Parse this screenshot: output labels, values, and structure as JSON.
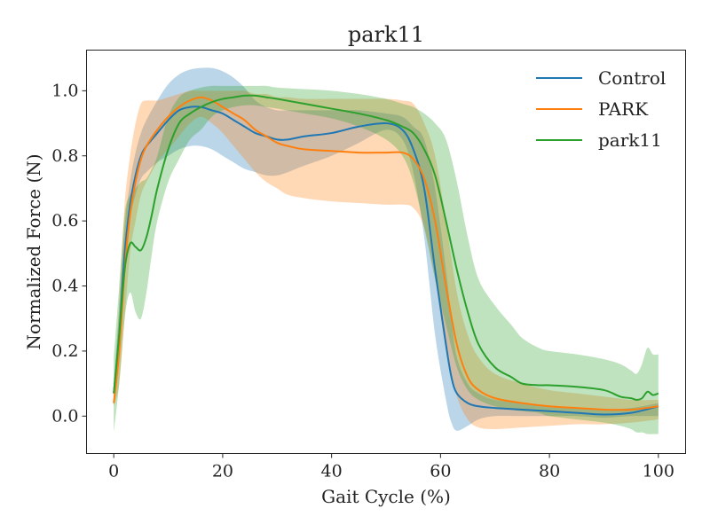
{
  "chart_data": {
    "type": "line",
    "title": "park11",
    "xlabel": "Gait Cycle (%)",
    "ylabel": "Normalized Force (N)",
    "xlim": [
      -5,
      105
    ],
    "ylim": [
      -0.115,
      1.125
    ],
    "xticks": [
      0,
      20,
      40,
      60,
      80,
      100
    ],
    "yticks": [
      0.0,
      0.2,
      0.4,
      0.6,
      0.8,
      1.0
    ],
    "legend_position": "top-right",
    "grid": false,
    "series": [
      {
        "name": "Control",
        "color": "#1f77b4",
        "x": [
          0,
          1,
          2,
          3,
          4,
          5,
          6,
          8,
          10,
          12,
          14,
          16,
          18,
          20,
          22,
          24,
          26,
          28,
          30,
          32,
          35,
          40,
          45,
          50,
          53,
          55,
          57,
          59,
          61,
          62,
          63,
          65,
          67,
          70,
          75,
          80,
          85,
          90,
          95,
          100
        ],
        "mean": [
          0.07,
          0.25,
          0.5,
          0.65,
          0.74,
          0.8,
          0.83,
          0.87,
          0.91,
          0.94,
          0.95,
          0.95,
          0.94,
          0.93,
          0.91,
          0.89,
          0.87,
          0.86,
          0.85,
          0.85,
          0.86,
          0.87,
          0.89,
          0.9,
          0.88,
          0.82,
          0.7,
          0.45,
          0.22,
          0.12,
          0.07,
          0.04,
          0.03,
          0.025,
          0.02,
          0.015,
          0.01,
          0.005,
          0.01,
          0.03
        ],
        "lower": [
          0.03,
          0.18,
          0.42,
          0.6,
          0.68,
          0.73,
          0.75,
          0.78,
          0.8,
          0.82,
          0.83,
          0.83,
          0.82,
          0.8,
          0.78,
          0.76,
          0.75,
          0.74,
          0.74,
          0.75,
          0.77,
          0.8,
          0.84,
          0.88,
          0.85,
          0.75,
          0.55,
          0.25,
          0.05,
          -0.02,
          -0.045,
          -0.03,
          -0.01,
          0.0,
          0.0,
          0.0,
          0.0,
          -0.005,
          0.0,
          0.0
        ],
        "upper": [
          0.1,
          0.33,
          0.58,
          0.72,
          0.81,
          0.87,
          0.91,
          0.97,
          1.02,
          1.05,
          1.065,
          1.07,
          1.07,
          1.06,
          1.04,
          1.01,
          0.97,
          0.95,
          0.94,
          0.94,
          0.94,
          0.94,
          0.94,
          0.93,
          0.92,
          0.89,
          0.85,
          0.7,
          0.45,
          0.3,
          0.18,
          0.1,
          0.07,
          0.05,
          0.04,
          0.03,
          0.025,
          0.02,
          0.025,
          0.04
        ]
      },
      {
        "name": "PARK",
        "color": "#ff7f0e",
        "x": [
          0,
          1,
          2,
          3,
          4,
          5,
          6,
          8,
          10,
          12,
          14,
          16,
          18,
          20,
          22,
          24,
          26,
          28,
          30,
          32,
          35,
          40,
          45,
          50,
          53,
          55,
          57,
          59,
          61,
          63,
          65,
          67,
          70,
          75,
          80,
          85,
          90,
          95,
          100
        ],
        "mean": [
          0.04,
          0.2,
          0.45,
          0.62,
          0.72,
          0.79,
          0.83,
          0.88,
          0.92,
          0.95,
          0.97,
          0.98,
          0.97,
          0.95,
          0.93,
          0.91,
          0.88,
          0.86,
          0.84,
          0.83,
          0.82,
          0.815,
          0.81,
          0.81,
          0.81,
          0.79,
          0.73,
          0.6,
          0.4,
          0.22,
          0.12,
          0.08,
          0.055,
          0.04,
          0.03,
          0.025,
          0.02,
          0.02,
          0.03
        ],
        "lower": [
          0.03,
          0.1,
          0.3,
          0.5,
          0.6,
          0.68,
          0.72,
          0.78,
          0.82,
          0.86,
          0.9,
          0.92,
          0.9,
          0.87,
          0.83,
          0.79,
          0.75,
          0.72,
          0.7,
          0.68,
          0.67,
          0.66,
          0.655,
          0.65,
          0.65,
          0.64,
          0.58,
          0.42,
          0.2,
          0.06,
          -0.01,
          -0.035,
          -0.04,
          -0.035,
          -0.03,
          -0.025,
          -0.025,
          -0.02,
          -0.01
        ],
        "upper": [
          0.05,
          0.35,
          0.65,
          0.8,
          0.9,
          0.96,
          0.97,
          0.97,
          0.98,
          0.99,
          1.0,
          1.0,
          1.0,
          1.0,
          1.0,
          1.0,
          0.99,
          0.99,
          0.98,
          0.98,
          0.975,
          0.975,
          0.975,
          0.975,
          0.97,
          0.96,
          0.9,
          0.8,
          0.6,
          0.38,
          0.25,
          0.18,
          0.13,
          0.1,
          0.08,
          0.07,
          0.06,
          0.05,
          0.05
        ]
      },
      {
        "name": "park11",
        "color": "#2ca02c",
        "x": [
          0,
          1,
          2,
          3,
          4,
          5,
          6,
          7,
          8,
          10,
          12,
          14,
          16,
          18,
          20,
          22,
          24,
          26,
          28,
          30,
          35,
          40,
          45,
          50,
          53,
          55,
          57,
          59,
          61,
          63,
          65,
          67,
          70,
          73,
          75,
          78,
          80,
          85,
          90,
          93,
          95,
          96,
          97,
          98,
          99,
          100
        ],
        "mean": [
          0.07,
          0.25,
          0.45,
          0.53,
          0.52,
          0.51,
          0.55,
          0.62,
          0.7,
          0.82,
          0.9,
          0.93,
          0.95,
          0.965,
          0.975,
          0.98,
          0.985,
          0.985,
          0.98,
          0.975,
          0.96,
          0.945,
          0.93,
          0.91,
          0.89,
          0.87,
          0.82,
          0.74,
          0.6,
          0.45,
          0.32,
          0.22,
          0.15,
          0.12,
          0.1,
          0.095,
          0.095,
          0.09,
          0.08,
          0.06,
          0.055,
          0.05,
          0.055,
          0.075,
          0.065,
          0.07
        ],
        "lower": [
          -0.05,
          0.1,
          0.3,
          0.38,
          0.32,
          0.3,
          0.38,
          0.5,
          0.6,
          0.72,
          0.79,
          0.85,
          0.88,
          0.92,
          0.94,
          0.95,
          0.955,
          0.955,
          0.95,
          0.945,
          0.93,
          0.915,
          0.89,
          0.85,
          0.8,
          0.72,
          0.58,
          0.42,
          0.28,
          0.15,
          0.08,
          0.05,
          0.03,
          0.02,
          0.015,
          0.01,
          0.0,
          -0.01,
          -0.02,
          -0.03,
          -0.04,
          -0.05,
          -0.05,
          -0.055,
          -0.055,
          -0.055
        ],
        "upper": [
          0.18,
          0.4,
          0.62,
          0.68,
          0.7,
          0.72,
          0.73,
          0.76,
          0.8,
          0.92,
          0.98,
          1.0,
          1.01,
          1.015,
          1.015,
          1.015,
          1.015,
          1.015,
          1.015,
          1.01,
          1.005,
          1.0,
          0.99,
          0.975,
          0.96,
          0.95,
          0.93,
          0.9,
          0.85,
          0.72,
          0.55,
          0.42,
          0.34,
          0.28,
          0.24,
          0.21,
          0.2,
          0.19,
          0.175,
          0.16,
          0.14,
          0.13,
          0.16,
          0.21,
          0.19,
          0.19
        ]
      }
    ]
  }
}
